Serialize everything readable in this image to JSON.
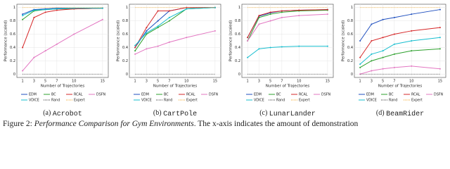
{
  "chart_data": [
    {
      "type": "line",
      "label": "(a)",
      "name": "Acrobot",
      "xlabel": "Number of Trajectories",
      "ylabel": "Performance (scaled)",
      "x": [
        1,
        3,
        5,
        7,
        10,
        15
      ],
      "xlim": [
        0,
        16
      ],
      "xticks": [
        1,
        3,
        5,
        7,
        10,
        15
      ],
      "ylim": [
        -0.05,
        1.05
      ],
      "yticks": [
        0,
        0.2,
        0.4,
        0.6,
        0.8,
        1
      ],
      "grid": true,
      "series": [
        {
          "name": "EDM",
          "color": "#1f4fbf",
          "values": [
            0.9,
            0.97,
            0.98,
            0.99,
            0.99,
            0.99
          ]
        },
        {
          "name": "BC",
          "color": "#2ca02c",
          "values": [
            0.82,
            0.95,
            0.97,
            0.98,
            0.98,
            0.99
          ]
        },
        {
          "name": "RCAL",
          "color": "#d62728",
          "values": [
            0.4,
            0.85,
            0.93,
            0.96,
            0.98,
            0.99
          ]
        },
        {
          "name": "DSFN",
          "color": "#e377c2",
          "values": [
            0.05,
            0.25,
            0.35,
            0.45,
            0.6,
            0.82
          ]
        },
        {
          "name": "VDICE",
          "color": "#17becf",
          "values": [
            0.88,
            0.96,
            0.97,
            0.98,
            0.99,
            0.99
          ]
        },
        {
          "name": "Rand",
          "color": "#333333",
          "linestyle": "dotted",
          "values": [
            0,
            0,
            0,
            0,
            0,
            0
          ]
        },
        {
          "name": "Expert",
          "color": "#f5a623",
          "linestyle": "dotted",
          "values": [
            1,
            1,
            1,
            1,
            1,
            1
          ]
        }
      ]
    },
    {
      "type": "line",
      "label": "(b)",
      "name": "CartPole",
      "xlabel": "Number of Trajectories",
      "ylabel": "Performance (scaled)",
      "x": [
        1,
        3,
        5,
        7,
        10,
        15
      ],
      "xlim": [
        0,
        16
      ],
      "xticks": [
        1,
        3,
        5,
        7,
        10,
        15
      ],
      "ylim": [
        -0.05,
        1.05
      ],
      "yticks": [
        0,
        0.2,
        0.4,
        0.6,
        0.8,
        1
      ],
      "grid": true,
      "series": [
        {
          "name": "EDM",
          "color": "#1f4fbf",
          "values": [
            0.4,
            0.65,
            0.8,
            0.95,
            1,
            1
          ]
        },
        {
          "name": "BC",
          "color": "#2ca02c",
          "values": [
            0.35,
            0.6,
            0.7,
            0.8,
            0.98,
            1
          ]
        },
        {
          "name": "RCAL",
          "color": "#d62728",
          "values": [
            0.4,
            0.7,
            0.95,
            0.95,
            1,
            1
          ]
        },
        {
          "name": "DSFN",
          "color": "#e377c2",
          "values": [
            0.3,
            0.38,
            0.42,
            0.48,
            0.55,
            0.65
          ]
        },
        {
          "name": "VDICE",
          "color": "#17becf",
          "values": [
            0.43,
            0.62,
            0.72,
            0.85,
            0.98,
            1
          ]
        },
        {
          "name": "Rand",
          "color": "#333333",
          "linestyle": "dotted",
          "values": [
            0,
            0,
            0,
            0,
            0,
            0
          ]
        },
        {
          "name": "Expert",
          "color": "#f5a623",
          "linestyle": "dotted",
          "values": [
            1,
            1,
            1,
            1,
            1,
            1
          ]
        }
      ]
    },
    {
      "type": "line",
      "label": "(c)",
      "name": "LunarLander",
      "xlabel": "Number of Trajectories",
      "ylabel": "Performance (scaled)",
      "x": [
        1,
        3,
        5,
        7,
        10,
        15
      ],
      "xlim": [
        0,
        16
      ],
      "xticks": [
        1,
        3,
        5,
        7,
        10,
        15
      ],
      "ylim": [
        -0.05,
        1.05
      ],
      "yticks": [
        0,
        0.2,
        0.4,
        0.6,
        0.8,
        1
      ],
      "grid": true,
      "series": [
        {
          "name": "EDM",
          "color": "#1f4fbf",
          "values": [
            0.55,
            0.87,
            0.92,
            0.95,
            0.96,
            0.97
          ]
        },
        {
          "name": "BC",
          "color": "#2ca02c",
          "values": [
            0.5,
            0.85,
            0.9,
            0.93,
            0.95,
            0.96
          ]
        },
        {
          "name": "RCAL",
          "color": "#d62728",
          "values": [
            0.55,
            0.88,
            0.93,
            0.95,
            0.96,
            0.97
          ]
        },
        {
          "name": "DSFN",
          "color": "#e377c2",
          "values": [
            0.5,
            0.75,
            0.8,
            0.85,
            0.88,
            0.9
          ]
        },
        {
          "name": "VDICE",
          "color": "#17becf",
          "values": [
            0.25,
            0.38,
            0.4,
            0.41,
            0.42,
            0.42
          ]
        },
        {
          "name": "Rand",
          "color": "#333333",
          "linestyle": "dotted",
          "values": [
            0,
            0,
            0,
            0,
            0,
            0
          ]
        },
        {
          "name": "Expert",
          "color": "#f5a623",
          "linestyle": "dotted",
          "values": [
            1,
            1,
            1,
            1,
            1,
            1
          ]
        }
      ]
    },
    {
      "type": "line",
      "label": "(d)",
      "name": "BeamRider",
      "xlabel": "Number of Trajectories",
      "ylabel": "Performance (scaled)",
      "x": [
        1,
        3,
        5,
        7,
        10,
        15
      ],
      "xlim": [
        0,
        16
      ],
      "xticks": [
        1,
        3,
        5,
        7,
        10,
        15
      ],
      "ylim": [
        -0.05,
        1.05
      ],
      "yticks": [
        0,
        0.2,
        0.4,
        0.6,
        0.8,
        1
      ],
      "grid": true,
      "series": [
        {
          "name": "EDM",
          "color": "#1f4fbf",
          "values": [
            0.5,
            0.75,
            0.82,
            0.85,
            0.9,
            0.97
          ]
        },
        {
          "name": "BC",
          "color": "#2ca02c",
          "values": [
            0.1,
            0.2,
            0.25,
            0.3,
            0.35,
            0.38
          ]
        },
        {
          "name": "RCAL",
          "color": "#d62728",
          "values": [
            0.25,
            0.5,
            0.55,
            0.6,
            0.65,
            0.7
          ]
        },
        {
          "name": "DSFN",
          "color": "#e377c2",
          "values": [
            0,
            0.05,
            0.08,
            0.1,
            0.12,
            0.08
          ]
        },
        {
          "name": "VDICE",
          "color": "#17becf",
          "values": [
            0.15,
            0.3,
            0.35,
            0.45,
            0.5,
            0.55
          ]
        },
        {
          "name": "Rand",
          "color": "#333333",
          "linestyle": "dotted",
          "values": [
            0,
            0,
            0,
            0,
            0,
            0
          ]
        },
        {
          "name": "Expert",
          "color": "#f5a623",
          "linestyle": "dotted",
          "values": [
            1,
            1,
            1,
            1,
            1,
            1
          ]
        }
      ]
    }
  ],
  "caption": {
    "label": "Figure 2:",
    "title": "Performance Comparison for Gym Environments",
    "text": ". The x-axis indicates the amount of demonstration"
  }
}
